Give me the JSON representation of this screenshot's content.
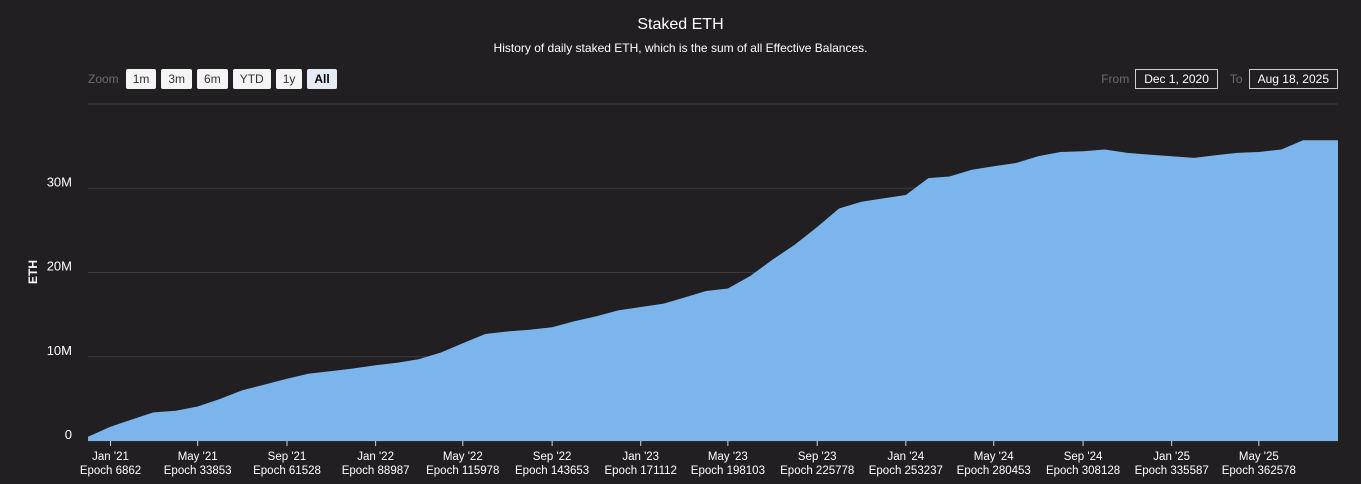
{
  "header": {
    "title": "Staked ETH",
    "subtitle": "History of daily staked ETH, which is the sum of all Effective Balances."
  },
  "zoom": {
    "label": "Zoom",
    "buttons": [
      "1m",
      "3m",
      "6m",
      "YTD",
      "1y",
      "All"
    ],
    "active": "All"
  },
  "range": {
    "from_label": "From",
    "from_value": "Dec 1, 2020",
    "to_label": "To",
    "to_value": "Aug 18, 2025"
  },
  "colors": {
    "background": "#211f22",
    "area": "#7cb5ec",
    "grid": "#3c3a3d"
  },
  "chart_data": {
    "type": "area",
    "title": "Staked ETH",
    "subtitle": "History of daily staked ETH, which is the sum of all Effective Balances.",
    "xlabel": "",
    "ylabel": "ETH",
    "ylim": [
      0,
      40000000
    ],
    "yticks": [
      0,
      10000000,
      20000000,
      30000000
    ],
    "ytick_labels": [
      "0",
      "10M",
      "20M",
      "30M"
    ],
    "xlim": [
      "2020-12-01",
      "2025-08-18"
    ],
    "xticks": [
      {
        "date": "2021-01-01",
        "label": "Jan '21",
        "epoch": "Epoch 6862"
      },
      {
        "date": "2021-05-01",
        "label": "May '21",
        "epoch": "Epoch 33853"
      },
      {
        "date": "2021-09-01",
        "label": "Sep '21",
        "epoch": "Epoch 61528"
      },
      {
        "date": "2022-01-01",
        "label": "Jan '22",
        "epoch": "Epoch 88987"
      },
      {
        "date": "2022-05-01",
        "label": "May '22",
        "epoch": "Epoch 115978"
      },
      {
        "date": "2022-09-01",
        "label": "Sep '22",
        "epoch": "Epoch 143653"
      },
      {
        "date": "2023-01-01",
        "label": "Jan '23",
        "epoch": "Epoch 171112"
      },
      {
        "date": "2023-05-01",
        "label": "May '23",
        "epoch": "Epoch 198103"
      },
      {
        "date": "2023-09-01",
        "label": "Sep '23",
        "epoch": "Epoch 225778"
      },
      {
        "date": "2024-01-01",
        "label": "Jan '24",
        "epoch": "Epoch 253237"
      },
      {
        "date": "2024-05-01",
        "label": "May '24",
        "epoch": "Epoch 280453"
      },
      {
        "date": "2024-09-01",
        "label": "Sep '24",
        "epoch": "Epoch 308128"
      },
      {
        "date": "2025-01-01",
        "label": "Jan '25",
        "epoch": "Epoch 335587"
      },
      {
        "date": "2025-05-01",
        "label": "May '25",
        "epoch": "Epoch 362578"
      }
    ],
    "grid": true,
    "series": [
      {
        "color": "#7cb5ec",
        "points": [
          [
            "2020-12-01",
            0.5
          ],
          [
            "2021-01-01",
            1.7
          ],
          [
            "2021-02-01",
            2.6
          ],
          [
            "2021-03-01",
            3.4
          ],
          [
            "2021-04-01",
            3.6
          ],
          [
            "2021-05-01",
            4.1
          ],
          [
            "2021-06-01",
            5.0
          ],
          [
            "2021-07-01",
            6.0
          ],
          [
            "2021-08-01",
            6.7
          ],
          [
            "2021-09-01",
            7.4
          ],
          [
            "2021-10-01",
            8.0
          ],
          [
            "2021-11-01",
            8.3
          ],
          [
            "2021-12-01",
            8.6
          ],
          [
            "2022-01-01",
            9.0
          ],
          [
            "2022-02-01",
            9.3
          ],
          [
            "2022-03-01",
            9.7
          ],
          [
            "2022-04-01",
            10.5
          ],
          [
            "2022-05-01",
            11.6
          ],
          [
            "2022-06-01",
            12.7
          ],
          [
            "2022-07-01",
            13.0
          ],
          [
            "2022-08-01",
            13.2
          ],
          [
            "2022-09-01",
            13.5
          ],
          [
            "2022-10-01",
            14.2
          ],
          [
            "2022-11-01",
            14.8
          ],
          [
            "2022-12-01",
            15.5
          ],
          [
            "2023-01-01",
            15.9
          ],
          [
            "2023-02-01",
            16.3
          ],
          [
            "2023-03-01",
            17.0
          ],
          [
            "2023-04-01",
            17.8
          ],
          [
            "2023-05-01",
            18.1
          ],
          [
            "2023-06-01",
            19.6
          ],
          [
            "2023-07-01",
            21.5
          ],
          [
            "2023-08-01",
            23.3
          ],
          [
            "2023-09-01",
            25.4
          ],
          [
            "2023-10-01",
            27.6
          ],
          [
            "2023-11-01",
            28.4
          ],
          [
            "2023-12-01",
            28.8
          ],
          [
            "2024-01-01",
            29.2
          ],
          [
            "2024-02-01",
            31.2
          ],
          [
            "2024-03-01",
            31.4
          ],
          [
            "2024-04-01",
            32.2
          ],
          [
            "2024-05-01",
            32.6
          ],
          [
            "2024-06-01",
            33.0
          ],
          [
            "2024-07-01",
            33.8
          ],
          [
            "2024-08-01",
            34.3
          ],
          [
            "2024-09-01",
            34.4
          ],
          [
            "2024-10-01",
            34.6
          ],
          [
            "2024-11-01",
            34.2
          ],
          [
            "2024-12-01",
            34.0
          ],
          [
            "2025-01-01",
            33.8
          ],
          [
            "2025-02-01",
            33.6
          ],
          [
            "2025-03-01",
            33.9
          ],
          [
            "2025-04-01",
            34.2
          ],
          [
            "2025-05-01",
            34.3
          ],
          [
            "2025-06-01",
            34.6
          ],
          [
            "2025-07-01",
            35.7
          ],
          [
            "2025-08-18",
            35.7
          ]
        ]
      }
    ],
    "units_note": "M"
  }
}
